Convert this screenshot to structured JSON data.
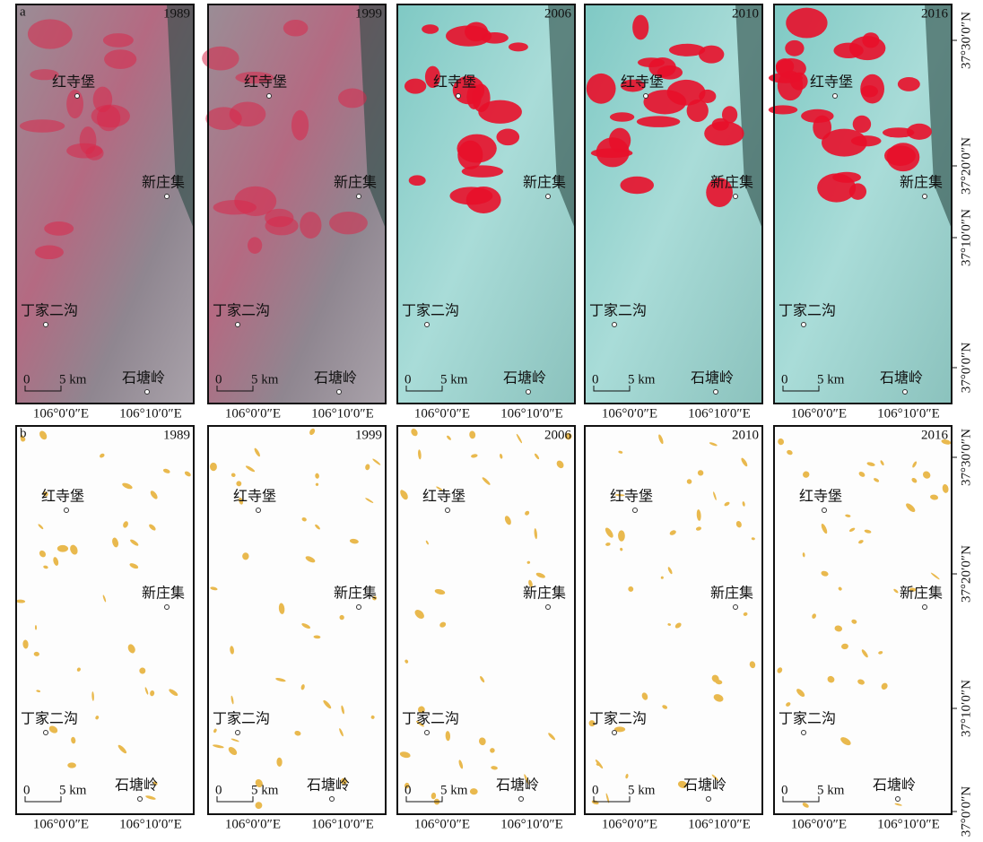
{
  "panel_labels": [
    "a",
    "b"
  ],
  "years": [
    "1989",
    "1999",
    "2006",
    "2010",
    "2016"
  ],
  "places": [
    "红寺堡",
    "新庄集",
    "丁家二沟",
    "石塘岭"
  ],
  "scale": {
    "zero": "0",
    "length": "5 km"
  },
  "x_labels": [
    "106°0′0″E",
    "106°10′0″E"
  ],
  "y_labels": [
    "37°30′0″N",
    "37°20′0″N",
    "37°10′0″N",
    "37°0′0″N"
  ]
}
